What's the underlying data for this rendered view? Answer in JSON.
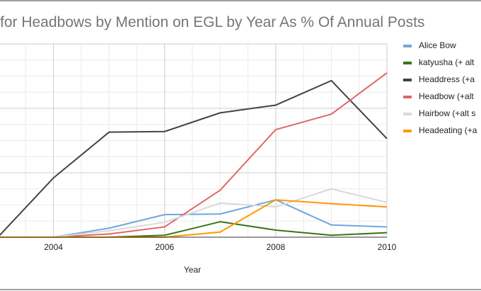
{
  "chart_data": {
    "type": "line",
    "title": "for Headbows by Mention on EGL by Year As % Of Annual Posts",
    "xlabel": "Year",
    "ylabel": "",
    "x": [
      2003,
      2004,
      2005,
      2006,
      2007,
      2008,
      2009,
      2010
    ],
    "x_ticks": [
      "2004",
      "2006",
      "2008",
      "2010"
    ],
    "xlim": [
      2003,
      2010
    ],
    "ylim": [
      0,
      3
    ],
    "y_units_note": "relative to major gridlines (axis labels not visible)",
    "grid": true,
    "legend_position": "right",
    "series": [
      {
        "name": "Alice Bow",
        "color": "#6fa8dc",
        "values": [
          0,
          0,
          0.14,
          0.35,
          0.36,
          0.58,
          0.19,
          0.16
        ]
      },
      {
        "name": "katyusha (+ alt",
        "color": "#38761d",
        "values": [
          0,
          0,
          0,
          0.03,
          0.24,
          0.11,
          0.03,
          0.07
        ]
      },
      {
        "name": "Headdress (+a",
        "color": "#434343",
        "values": [
          0,
          0.92,
          1.63,
          1.64,
          1.93,
          2.05,
          2.43,
          1.53
        ]
      },
      {
        "name": "Headbow (+alt",
        "color": "#e06666",
        "values": [
          0,
          0,
          0.05,
          0.16,
          0.73,
          1.67,
          1.91,
          2.55
        ]
      },
      {
        "name": "Hairbow (+alt s",
        "color": "#d9d9d9",
        "values": [
          0,
          0,
          0.1,
          0.23,
          0.53,
          0.47,
          0.75,
          0.54
        ]
      },
      {
        "name": "Headeating (+a",
        "color": "#ff9900",
        "values": [
          0,
          0,
          0,
          0,
          0.08,
          0.58,
          0.52,
          0.47
        ]
      }
    ]
  }
}
